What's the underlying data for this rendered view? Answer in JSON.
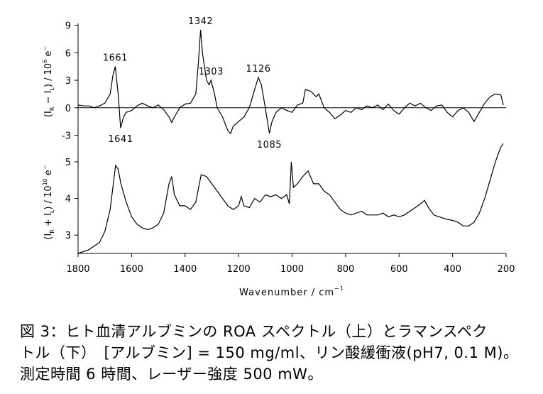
{
  "chart_data": [
    {
      "type": "line",
      "xlim": [
        1800,
        200
      ],
      "ylim": [
        -3.5,
        9.2
      ],
      "yticks": [
        -3,
        0,
        3,
        6,
        9
      ],
      "ylabel": [
        "(",
        "I",
        "R",
        " − ",
        "I",
        "L",
        ") / 10",
        "6",
        " e",
        "−"
      ],
      "annotations": [
        1661,
        1641,
        1342,
        1303,
        1126,
        1085
      ],
      "color": "#000000",
      "x": [
        1800,
        1780,
        1760,
        1740,
        1720,
        1700,
        1680,
        1670,
        1661,
        1650,
        1641,
        1630,
        1620,
        1600,
        1580,
        1560,
        1540,
        1520,
        1500,
        1480,
        1460,
        1450,
        1440,
        1420,
        1400,
        1380,
        1360,
        1350,
        1342,
        1335,
        1320,
        1310,
        1303,
        1290,
        1280,
        1260,
        1240,
        1230,
        1220,
        1200,
        1180,
        1160,
        1150,
        1140,
        1126,
        1115,
        1100,
        1085,
        1075,
        1060,
        1040,
        1020,
        1000,
        980,
        960,
        950,
        930,
        910,
        900,
        880,
        860,
        840,
        820,
        800,
        780,
        760,
        740,
        720,
        700,
        680,
        660,
        640,
        620,
        600,
        580,
        560,
        540,
        520,
        500,
        480,
        460,
        440,
        420,
        400,
        380,
        360,
        340,
        320,
        300,
        280,
        260,
        240,
        220,
        210
      ],
      "values": [
        0.3,
        0.2,
        0.2,
        0.0,
        0.2,
        0.5,
        1.5,
        3.5,
        4.5,
        1.5,
        -2.2,
        -1.0,
        -0.5,
        -0.3,
        0.2,
        0.5,
        0.2,
        0.0,
        0.3,
        -0.2,
        -1.0,
        -1.6,
        -1.0,
        0.0,
        0.4,
        0.5,
        1.5,
        5.0,
        8.5,
        6.0,
        3.0,
        2.5,
        3.0,
        1.5,
        0.0,
        -1.0,
        -2.5,
        -2.8,
        -2.0,
        -1.5,
        -1.0,
        0.0,
        1.0,
        2.0,
        3.3,
        2.5,
        0.0,
        -2.8,
        -1.5,
        -0.5,
        0.0,
        -0.3,
        -0.5,
        0.3,
        0.5,
        2.0,
        1.8,
        1.2,
        1.5,
        0.0,
        -0.5,
        -1.2,
        -0.8,
        -0.3,
        -0.5,
        0.0,
        -0.2,
        0.2,
        0.0,
        0.3,
        -0.2,
        0.4,
        -0.3,
        -0.7,
        0.0,
        0.5,
        0.2,
        0.5,
        0.0,
        -0.3,
        0.2,
        0.3,
        -0.5,
        -1.0,
        -0.3,
        0.0,
        -0.5,
        -1.5,
        -0.5,
        0.5,
        1.2,
        1.5,
        1.4,
        0.3
      ]
    },
    {
      "type": "line",
      "xlim": [
        1800,
        200
      ],
      "xticks": [
        1800,
        1600,
        1400,
        1200,
        1000,
        800,
        600,
        400,
        200
      ],
      "xlabel": [
        "Wavenumber / cm",
        "−1"
      ],
      "ylim": [
        2.5,
        5.6
      ],
      "yticks": [
        3,
        4,
        5
      ],
      "ylabel": [
        "(",
        "I",
        "R",
        " + ",
        "I",
        "L",
        ") / 10",
        "10",
        " e",
        "−"
      ],
      "color": "#000000",
      "x": [
        1800,
        1760,
        1720,
        1700,
        1680,
        1660,
        1650,
        1640,
        1620,
        1600,
        1580,
        1560,
        1540,
        1520,
        1500,
        1480,
        1460,
        1450,
        1440,
        1420,
        1400,
        1380,
        1360,
        1340,
        1320,
        1300,
        1280,
        1260,
        1240,
        1220,
        1200,
        1190,
        1180,
        1160,
        1140,
        1120,
        1100,
        1080,
        1060,
        1040,
        1020,
        1010,
        1003,
        995,
        980,
        960,
        940,
        920,
        900,
        880,
        860,
        840,
        820,
        800,
        780,
        760,
        740,
        720,
        700,
        680,
        660,
        640,
        620,
        600,
        580,
        560,
        540,
        520,
        505,
        490,
        470,
        450,
        430,
        400,
        380,
        360,
        340,
        320,
        300,
        280,
        260,
        240,
        220,
        210
      ],
      "values": [
        2.5,
        2.6,
        2.8,
        3.1,
        3.7,
        4.9,
        4.8,
        4.4,
        3.9,
        3.5,
        3.3,
        3.2,
        3.15,
        3.2,
        3.3,
        3.6,
        4.4,
        4.6,
        4.1,
        3.8,
        3.8,
        3.7,
        3.9,
        4.65,
        4.6,
        4.4,
        4.2,
        4.0,
        3.8,
        3.7,
        3.8,
        4.05,
        3.8,
        3.75,
        4.0,
        3.9,
        4.1,
        4.05,
        4.1,
        4.0,
        4.1,
        3.85,
        5.0,
        4.3,
        4.4,
        4.6,
        4.75,
        4.4,
        4.4,
        4.2,
        4.1,
        3.9,
        3.7,
        3.6,
        3.55,
        3.6,
        3.65,
        3.55,
        3.55,
        3.55,
        3.6,
        3.5,
        3.55,
        3.5,
        3.55,
        3.65,
        3.75,
        3.85,
        3.95,
        3.75,
        3.55,
        3.5,
        3.45,
        3.4,
        3.35,
        3.25,
        3.25,
        3.35,
        3.6,
        4.0,
        4.5,
        5.0,
        5.4,
        5.5
      ]
    }
  ],
  "caption": [
    "図 3：ヒト血清アルブミンの ROA スペクトル（上）とラマンスペク",
    "トル（下）　[アルブミン] = 150 mg/ml、リン酸緩衝液(pH7, 0.1 M)。",
    "測定時間 6 時間、レーザー強度 500 mW。"
  ]
}
